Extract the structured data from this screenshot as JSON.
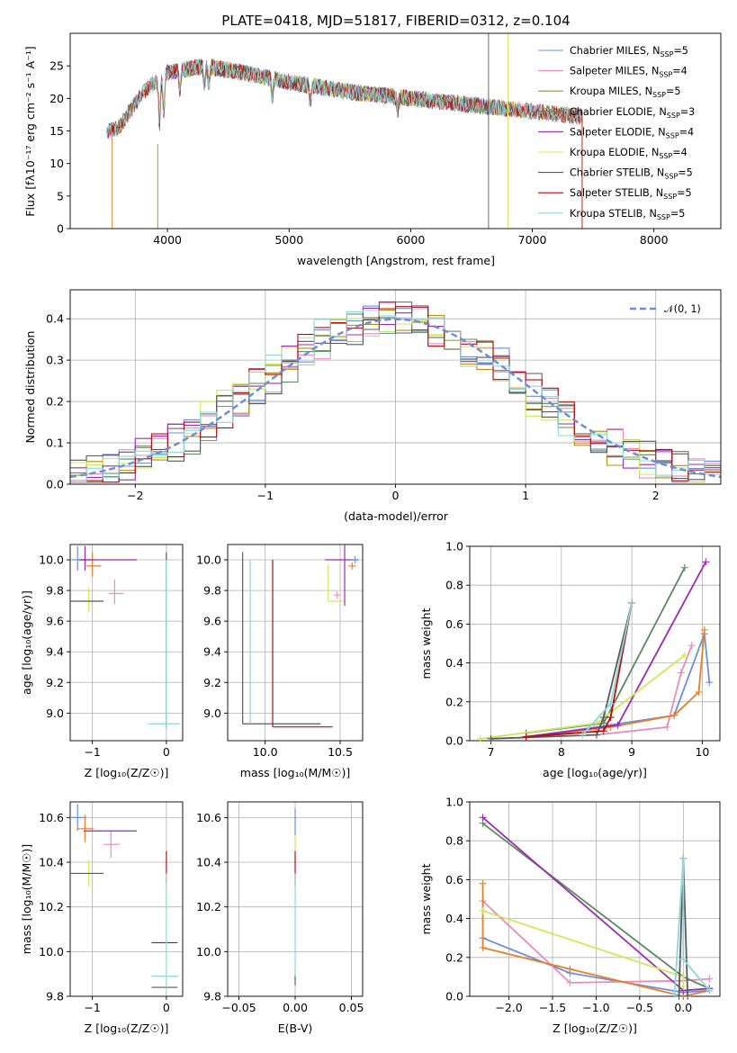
{
  "colors": {
    "chabrier_miles": "#6a8fd8",
    "salpeter_miles": "#e98bbd",
    "kroupa_miles": "#b38f0f",
    "chabrier_elodie": "#5a8a5c",
    "salpeter_elodie": "#9a2cb3",
    "kroupa_elodie": "#cfe85a",
    "chabrier_stelib": "#5a5a5a",
    "salpeter_stelib": "#b50d0d",
    "kroupa_stelib": "#8fd6d6",
    "orange": "#e67f25",
    "normal_curve": "#6a8fd8"
  },
  "chart_data": [
    {
      "id": "spectrum",
      "type": "line",
      "title": "PLATE=0418, MJD=51817, FIBERID=0312, z=0.104",
      "xlabel": "wavelength [Angstrom, rest frame]",
      "ylabel": "Flux [fλ10⁻¹⁷ erg cm⁻² s⁻¹ A⁻¹]",
      "xlim": [
        3200,
        8550
      ],
      "ylim": [
        0,
        30
      ],
      "xticks": [
        "4000",
        "5000",
        "6000",
        "7000",
        "8000"
      ],
      "yticks": [
        "0",
        "5",
        "10",
        "15",
        "20",
        "25"
      ],
      "grid": false,
      "legend_position": "top-right",
      "legend": [
        "Chabrier MILES, N_SSP=5",
        "Salpeter MILES, N_SSP=4",
        "Kroupa MILES, N_SSP=5",
        "Chabrier ELODIE, N_SSP=3",
        "Salpeter ELODIE, N_SSP=4",
        "Kroupa ELODIE, N_SSP=4",
        "Chabrier STELIB, N_SSP=5",
        "Salpeter STELIB, N_SSP=5",
        "Kroupa STELIB, N_SSP=5"
      ],
      "continuum": [
        [
          3500,
          15
        ],
        [
          3600,
          15.5
        ],
        [
          3800,
          21
        ],
        [
          4000,
          24
        ],
        [
          4300,
          25
        ],
        [
          4600,
          24
        ],
        [
          5000,
          22.5
        ],
        [
          5500,
          21
        ],
        [
          6000,
          20
        ],
        [
          6500,
          19
        ],
        [
          7000,
          18
        ],
        [
          7500,
          17
        ]
      ]
    },
    {
      "id": "residuals",
      "type": "line",
      "xlabel": "(data-model)/error",
      "ylabel": "Normed distribution",
      "xlim": [
        -2.5,
        2.5
      ],
      "ylim": [
        0,
        0.47
      ],
      "xticks": [
        "−2",
        "−1",
        "0",
        "1",
        "2"
      ],
      "yticks": [
        "0.0",
        "0.1",
        "0.2",
        "0.3",
        "0.4"
      ],
      "grid": true,
      "legend_position": "top-right",
      "legend": [
        "𝒩(0, 1)"
      ]
    },
    {
      "id": "age_vs_Z",
      "type": "scatter",
      "xlabel": "Z [log₁₀(Z/Z☉)]",
      "ylabel": "age  [log₁₀(age/yr)]",
      "xlim": [
        -1.3,
        0.22
      ],
      "ylim": [
        8.82,
        10.1
      ],
      "xticks": [
        "−1",
        "0"
      ],
      "yticks": [
        "9.0",
        "9.2",
        "9.4",
        "9.6",
        "9.8",
        "10.0"
      ],
      "grid": true
    },
    {
      "id": "age_vs_mass",
      "type": "scatter",
      "xlabel": "mass [log₁₀(M/M☉)]",
      "xlim": [
        9.75,
        10.65
      ],
      "ylim": [
        8.82,
        10.1
      ],
      "xticks": [
        "10.0",
        "10.5"
      ],
      "yticks": [
        "9.0",
        "9.2",
        "9.4",
        "9.6",
        "9.8",
        "10.0"
      ],
      "grid": true
    },
    {
      "id": "weight_vs_age",
      "type": "line",
      "xlabel": "age  [log₁₀(age/yr)]",
      "ylabel": "mass weight",
      "xlim": [
        6.7,
        10.25
      ],
      "ylim": [
        0,
        1.0
      ],
      "xticks": [
        "7",
        "8",
        "9",
        "10"
      ],
      "yticks": [
        "0.0",
        "0.2",
        "0.4",
        "0.6",
        "0.8",
        "1.0"
      ],
      "grid": true,
      "series": [
        {
          "color": "chabrier_miles",
          "points": [
            [
              7.5,
              0.02
            ],
            [
              8.5,
              0.07
            ],
            [
              9.6,
              0.13
            ],
            [
              10.03,
              0.55
            ],
            [
              10.1,
              0.3
            ]
          ]
        },
        {
          "color": "salpeter_miles",
          "points": [
            [
              8.5,
              0.03
            ],
            [
              9.5,
              0.07
            ],
            [
              9.7,
              0.35
            ],
            [
              9.85,
              0.49
            ]
          ]
        },
        {
          "color": "orange",
          "points": [
            [
              7.5,
              0.02
            ],
            [
              8.7,
              0.07
            ],
            [
              9.6,
              0.13
            ],
            [
              9.95,
              0.25
            ],
            [
              10.03,
              0.57
            ]
          ]
        },
        {
          "color": "chabrier_elodie",
          "points": [
            [
              7.5,
              0.04
            ],
            [
              8.6,
              0.09
            ],
            [
              9.75,
              0.89
            ]
          ]
        },
        {
          "color": "salpeter_elodie",
          "points": [
            [
              7.5,
              0.02
            ],
            [
              8.8,
              0.08
            ],
            [
              10.05,
              0.92
            ]
          ]
        },
        {
          "color": "kroupa_elodie",
          "points": [
            [
              6.85,
              0.01
            ],
            [
              8.5,
              0.09
            ],
            [
              9.75,
              0.44
            ]
          ]
        },
        {
          "color": "chabrier_stelib",
          "points": [
            [
              7.0,
              0.01
            ],
            [
              8.5,
              0.03
            ],
            [
              8.6,
              0.12
            ],
            [
              9.0,
              0.71
            ]
          ]
        },
        {
          "color": "salpeter_stelib",
          "points": [
            [
              7.5,
              0.02
            ],
            [
              8.6,
              0.05
            ],
            [
              8.7,
              0.12
            ],
            [
              9.0,
              0.71
            ]
          ]
        },
        {
          "color": "kroupa_stelib",
          "points": [
            [
              8.3,
              0.03
            ],
            [
              8.7,
              0.19
            ],
            [
              9.0,
              0.71
            ]
          ]
        }
      ]
    },
    {
      "id": "mass_vs_Z",
      "type": "scatter",
      "xlabel": "Z [log₁₀(Z/Z☉)]",
      "ylabel": "mass [log₁₀(M/M☉)]",
      "xlim": [
        -1.3,
        0.22
      ],
      "ylim": [
        9.8,
        10.67
      ],
      "xticks": [
        "−1",
        "0"
      ],
      "yticks": [
        "9.8",
        "10.0",
        "10.2",
        "10.4",
        "10.6"
      ],
      "grid": true
    },
    {
      "id": "mass_vs_EBV",
      "type": "scatter",
      "xlabel": "E(B-V)",
      "xlim": [
        -0.06,
        0.06
      ],
      "ylim": [
        9.8,
        10.67
      ],
      "xticks": [
        "−0.05",
        "0.00",
        "0.05"
      ],
      "yticks": [
        "9.8",
        "10.0",
        "10.2",
        "10.4",
        "10.6"
      ],
      "grid": true
    },
    {
      "id": "weight_vs_Z",
      "type": "line",
      "xlabel": "Z [log₁₀(Z/Z☉)]",
      "ylabel": "mass weight",
      "xlim": [
        -2.45,
        0.42
      ],
      "ylim": [
        0,
        1.0
      ],
      "xticks": [
        "−2.0",
        "−1.5",
        "−1.0",
        "−0.5",
        "0.0"
      ],
      "yticks": [
        "0.0",
        "0.2",
        "0.4",
        "0.6",
        "0.8",
        "1.0"
      ],
      "grid": true,
      "series": [
        {
          "color": "chabrier_miles",
          "points": [
            [
              -2.3,
              0.3
            ],
            [
              -1.3,
              0.12
            ],
            [
              0.0,
              0.02
            ],
            [
              0.3,
              0.03
            ]
          ]
        },
        {
          "color": "salpeter_miles",
          "points": [
            [
              -2.3,
              0.49
            ],
            [
              -1.3,
              0.07
            ],
            [
              0.0,
              0.08
            ],
            [
              0.3,
              0.09
            ]
          ]
        },
        {
          "color": "orange",
          "points": [
            [
              -2.3,
              0.58
            ],
            [
              -2.3,
              0.25
            ],
            [
              -1.3,
              0.14
            ],
            [
              0.0,
              0.0
            ],
            [
              0.3,
              0.03
            ]
          ]
        },
        {
          "color": "chabrier_elodie",
          "points": [
            [
              -2.3,
              0.89
            ],
            [
              0.0,
              0.1
            ],
            [
              0.3,
              0.04
            ]
          ]
        },
        {
          "color": "salpeter_elodie",
          "points": [
            [
              -2.3,
              0.92
            ],
            [
              0.0,
              0.03
            ],
            [
              0.3,
              0.04
            ]
          ]
        },
        {
          "color": "kroupa_elodie",
          "points": [
            [
              -2.3,
              0.44
            ],
            [
              0.0,
              0.1
            ],
            [
              0.0,
              0.05
            ]
          ]
        },
        {
          "color": "chabrier_stelib",
          "points": [
            [
              -0.05,
              0.0
            ],
            [
              0.0,
              0.71
            ],
            [
              0.05,
              0.0
            ]
          ]
        },
        {
          "color": "kroupa_stelib",
          "points": [
            [
              -0.1,
              0.01
            ],
            [
              0.0,
              0.71
            ],
            [
              0.0,
              0.19
            ],
            [
              0.3,
              0.03
            ]
          ]
        }
      ]
    }
  ]
}
